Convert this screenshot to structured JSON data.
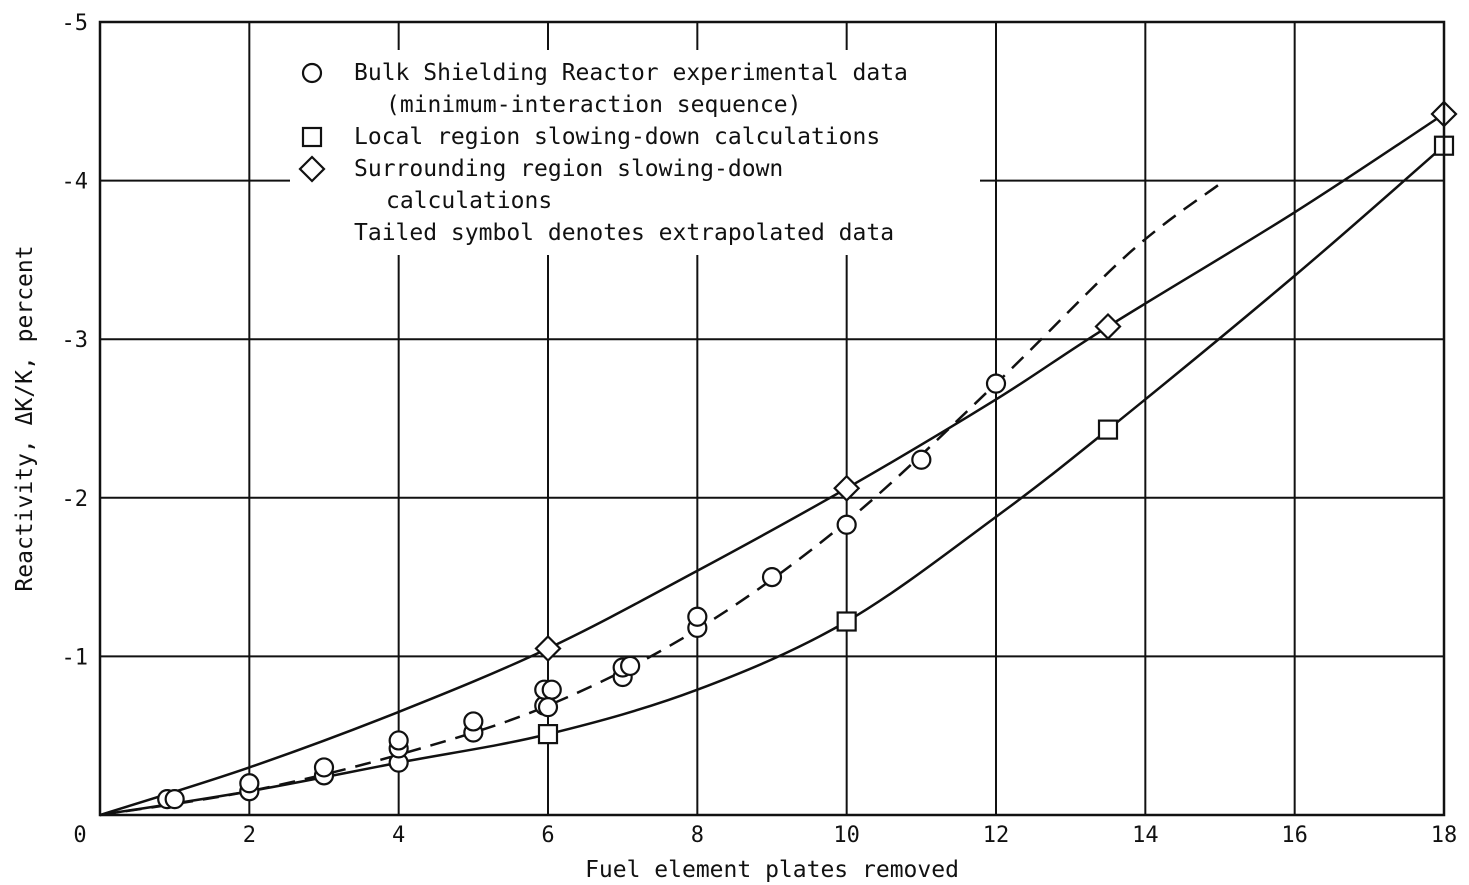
{
  "chart_data": {
    "type": "scatter",
    "title": "",
    "xlabel": "Fuel element plates removed",
    "ylabel": "Reactivity, ΔK/K, percent",
    "xlim": [
      0,
      18
    ],
    "ylim": [
      0,
      -5
    ],
    "x_ticks": [
      "0",
      "2",
      "4",
      "6",
      "8",
      "10",
      "12",
      "14",
      "16",
      "18"
    ],
    "y_ticks": [
      "0",
      "-1",
      "-2",
      "-3",
      "-4",
      "-5"
    ],
    "grid": true,
    "legend_position": "top-left",
    "legend": [
      {
        "symbol": "circle",
        "lines": [
          "Bulk Shielding Reactor experimental data",
          "(minimum-interaction sequence)"
        ]
      },
      {
        "symbol": "square",
        "lines": [
          "Local region slowing-down calculations"
        ]
      },
      {
        "symbol": "diamond",
        "lines": [
          "Surrounding region slowing-down",
          "calculations"
        ]
      },
      {
        "symbol": "",
        "lines": [
          "Tailed symbol denotes extrapolated data"
        ]
      }
    ],
    "series": [
      {
        "marker": "circle",
        "line": "dashed",
        "points": [
          [
            0.9,
            -0.1
          ],
          [
            1.0,
            -0.1
          ],
          [
            2.0,
            -0.15
          ],
          [
            2.0,
            -0.2
          ],
          [
            3.0,
            -0.25
          ],
          [
            3.0,
            -0.3
          ],
          [
            4.0,
            -0.33
          ],
          [
            4.0,
            -0.42
          ],
          [
            4.0,
            -0.47
          ],
          [
            5.0,
            -0.52
          ],
          [
            5.0,
            -0.59
          ],
          [
            5.95,
            -0.69
          ],
          [
            5.95,
            -0.79
          ],
          [
            6.05,
            -0.79
          ],
          [
            6.0,
            -0.68
          ],
          [
            7.0,
            -0.87
          ],
          [
            7.0,
            -0.93
          ],
          [
            7.1,
            -0.94
          ],
          [
            8.0,
            -1.18
          ],
          [
            8.0,
            -1.25
          ],
          [
            9.0,
            -1.5
          ],
          [
            10.0,
            -1.83
          ],
          [
            11.0,
            -2.24
          ],
          [
            12.0,
            -2.72
          ]
        ],
        "curve": [
          [
            0,
            0
          ],
          [
            2,
            -0.15
          ],
          [
            4,
            -0.38
          ],
          [
            6,
            -0.69
          ],
          [
            8,
            -1.17
          ],
          [
            10,
            -1.85
          ],
          [
            12,
            -2.72
          ],
          [
            13.8,
            -3.55
          ],
          [
            15.0,
            -3.98
          ]
        ]
      },
      {
        "marker": "square",
        "line": "solid",
        "points": [
          [
            6,
            -0.51
          ],
          [
            10,
            -1.22
          ],
          [
            13.5,
            -2.43
          ],
          [
            18,
            -4.22
          ]
        ],
        "curve": [
          [
            0,
            0
          ],
          [
            2,
            -0.15
          ],
          [
            4,
            -0.33
          ],
          [
            6,
            -0.51
          ],
          [
            8,
            -0.79
          ],
          [
            10,
            -1.22
          ],
          [
            12,
            -1.88
          ],
          [
            13.5,
            -2.43
          ],
          [
            16,
            -3.4
          ],
          [
            18,
            -4.22
          ]
        ]
      },
      {
        "marker": "diamond",
        "line": "solid",
        "points": [
          [
            6,
            -1.05
          ],
          [
            10,
            -2.06
          ],
          [
            13.5,
            -3.08
          ],
          [
            18,
            -4.42
          ]
        ],
        "curve": [
          [
            0,
            0
          ],
          [
            2,
            -0.3
          ],
          [
            4,
            -0.65
          ],
          [
            6,
            -1.05
          ],
          [
            8,
            -1.54
          ],
          [
            10,
            -2.06
          ],
          [
            12,
            -2.62
          ],
          [
            13.5,
            -3.08
          ],
          [
            16,
            -3.8
          ],
          [
            18,
            -4.42
          ]
        ]
      }
    ]
  }
}
